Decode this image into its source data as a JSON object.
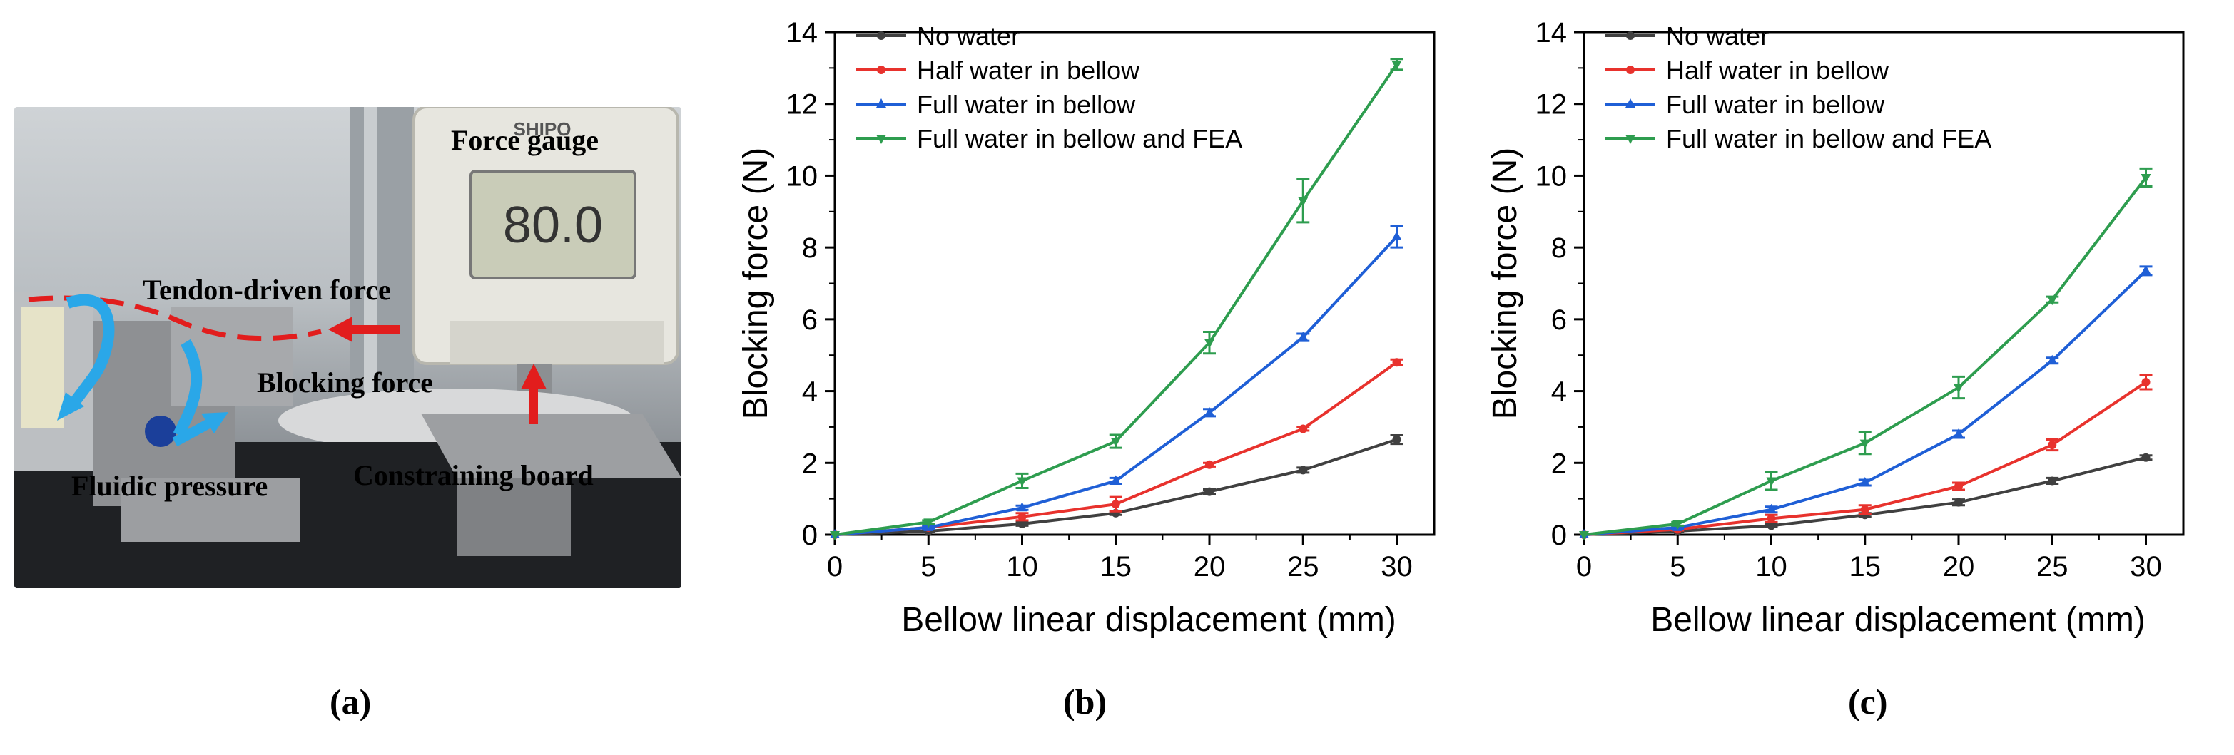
{
  "panel_a": {
    "labels": {
      "force_gauge": "Force gauge",
      "tendon_driven_force": "Tendon-driven force",
      "blocking_force": "Blocking force",
      "fluidic_pressure": "Fluidic pressure",
      "constraining_board": "Constraining board"
    },
    "gauge_brand": "SHIPO",
    "gauge_reading": "80.0"
  },
  "captions": {
    "a": "(a)",
    "b": "(b)",
    "c": "(c)"
  },
  "colors": {
    "no_water": "#404040",
    "half_water": "#e8322d",
    "full_water": "#1f5fd6",
    "fea": "#2e9d4f",
    "arrow_red": "#e21d1d",
    "arrow_blue": "#2aa7e8"
  },
  "chart_data": [
    {
      "type": "line",
      "panel": "b",
      "title": "",
      "xlabel": "Bellow linear displacement (mm)",
      "ylabel": "Blocking force (N)",
      "xlim": [
        0,
        32
      ],
      "ylim": [
        0,
        14
      ],
      "x_ticks": [
        "0",
        "5",
        "10",
        "15",
        "20",
        "25",
        "30"
      ],
      "y_ticks": [
        "0",
        "2",
        "4",
        "6",
        "8",
        "10",
        "12",
        "14"
      ],
      "legend_position": "top-left",
      "x": [
        0,
        5,
        10,
        15,
        20,
        25,
        30
      ],
      "series": [
        {
          "name": "No water",
          "values": [
            0,
            0.1,
            0.3,
            0.6,
            1.2,
            1.8,
            2.65
          ],
          "errors": [
            0,
            0.02,
            0.05,
            0.05,
            0.06,
            0.07,
            0.12
          ]
        },
        {
          "name": "Half water in bellow",
          "values": [
            0,
            0.2,
            0.5,
            0.85,
            1.95,
            2.95,
            4.8
          ],
          "errors": [
            0,
            0.03,
            0.1,
            0.2,
            0.05,
            0.05,
            0.08
          ]
        },
        {
          "name": "Full water in bellow",
          "values": [
            0,
            0.2,
            0.75,
            1.5,
            3.4,
            5.5,
            8.3
          ],
          "errors": [
            0,
            0.04,
            0.06,
            0.08,
            0.1,
            0.1,
            0.3
          ]
        },
        {
          "name": "Full water in bellow and FEA",
          "values": [
            0,
            0.35,
            1.5,
            2.6,
            5.35,
            9.3,
            13.1
          ],
          "errors": [
            0,
            0.05,
            0.2,
            0.18,
            0.3,
            0.6,
            0.15
          ]
        }
      ]
    },
    {
      "type": "line",
      "panel": "c",
      "title": "",
      "xlabel": "Bellow linear displacement (mm)",
      "ylabel": "Blocking force (N)",
      "xlim": [
        0,
        32
      ],
      "ylim": [
        0,
        14
      ],
      "x_ticks": [
        "0",
        "5",
        "10",
        "15",
        "20",
        "25",
        "30"
      ],
      "y_ticks": [
        "0",
        "2",
        "4",
        "6",
        "8",
        "10",
        "12",
        "14"
      ],
      "legend_position": "top-left",
      "x": [
        0,
        5,
        10,
        15,
        20,
        25,
        30
      ],
      "series": [
        {
          "name": "No water",
          "values": [
            0,
            0.1,
            0.25,
            0.55,
            0.9,
            1.5,
            2.15
          ],
          "errors": [
            0,
            0.02,
            0.04,
            0.05,
            0.08,
            0.08,
            0.06
          ]
        },
        {
          "name": "Half water in bellow",
          "values": [
            0,
            0.15,
            0.45,
            0.7,
            1.35,
            2.5,
            4.25
          ],
          "errors": [
            0,
            0.03,
            0.1,
            0.12,
            0.1,
            0.15,
            0.2
          ]
        },
        {
          "name": "Full water in bellow",
          "values": [
            0,
            0.2,
            0.7,
            1.45,
            2.8,
            4.85,
            7.35
          ],
          "errors": [
            0,
            0.04,
            0.08,
            0.08,
            0.1,
            0.08,
            0.12
          ]
        },
        {
          "name": "Full water in bellow and FEA",
          "values": [
            0,
            0.3,
            1.5,
            2.55,
            4.1,
            6.55,
            9.95
          ],
          "errors": [
            0,
            0.05,
            0.25,
            0.3,
            0.3,
            0.08,
            0.25
          ]
        }
      ]
    }
  ]
}
